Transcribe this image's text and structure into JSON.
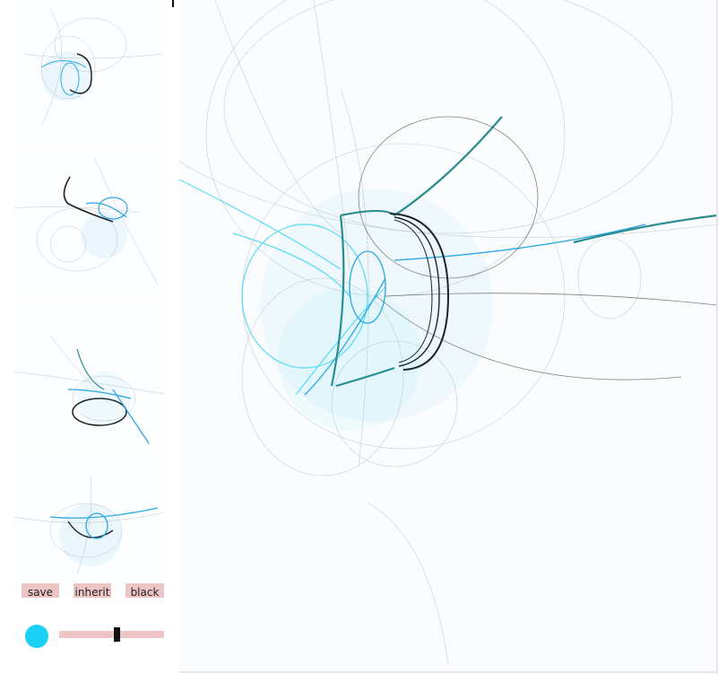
{
  "buttons": {
    "save": "save",
    "inherit": "inherit",
    "black": "black"
  },
  "colors": {
    "accent": "#1ad1f5",
    "teal": "#2a8c8c",
    "blue": "#2aa7e6",
    "dark": "#1e1e1e"
  },
  "slider": {
    "value": 0.55
  },
  "icons": {
    "color_swatch": "color-dot"
  }
}
